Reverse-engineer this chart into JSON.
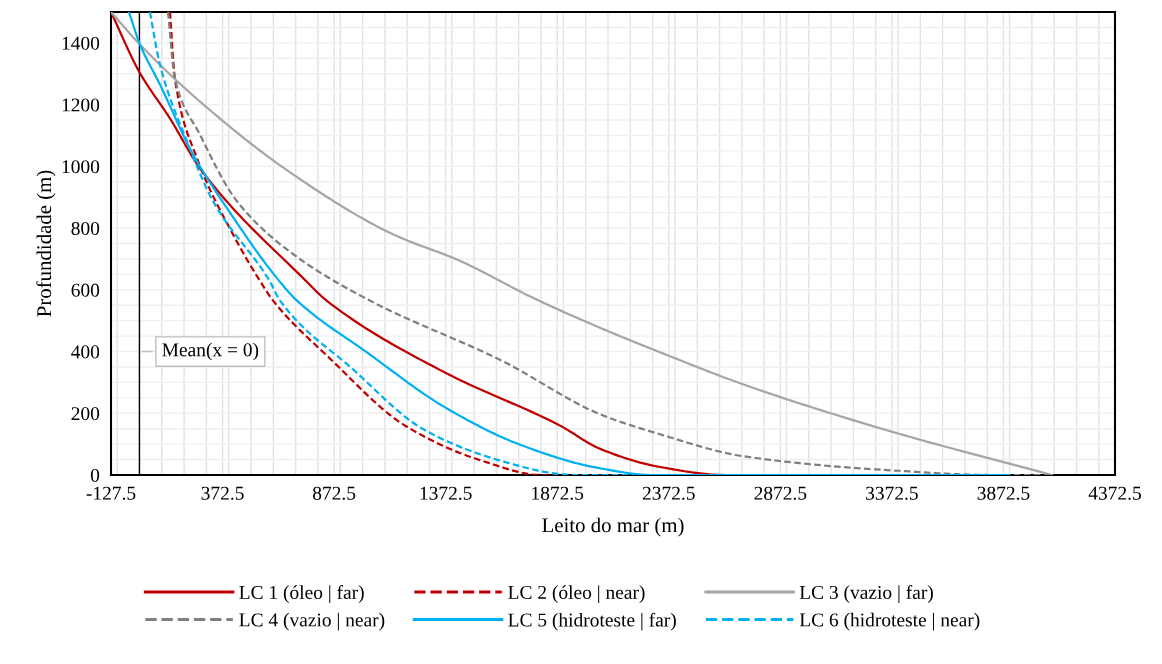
{
  "chart_data": {
    "type": "line",
    "xlabel": "Leito do mar (m)",
    "ylabel": "Profundidade (m)",
    "xlim": [
      -127.5,
      4372.5
    ],
    "xticks": [
      -127.5,
      372.5,
      872.5,
      1372.5,
      1872.5,
      2372.5,
      2872.5,
      3372.5,
      3872.5,
      4372.5
    ],
    "ylim": [
      0,
      1500
    ],
    "yticks": [
      0,
      200,
      400,
      600,
      800,
      1000,
      1200,
      1400
    ],
    "grid": true,
    "legend": "bottom",
    "marker": "none",
    "ref_lines": [
      {
        "axis": "x",
        "value": 0,
        "color": "#000000",
        "line_style": "solid"
      }
    ],
    "annotations": [
      {
        "text": "Mean(x = 0)",
        "x": 0,
        "y": 400
      }
    ],
    "series": [
      {
        "name": "LC 1 (óleo | far)",
        "color": "#c00000",
        "line_style": "solid",
        "x": [
          -127.5,
          0,
          137,
          271,
          746,
          839,
          1369,
          1885,
          2064,
          2333,
          2625,
          3900
        ],
        "values": [
          1500,
          1305,
          1155,
          994,
          629,
          565,
          332,
          160,
          85,
          26,
          0,
          0
        ]
      },
      {
        "name": "LC 2 (óleo | near)",
        "color": "#c00000",
        "line_style": "dashed",
        "x": [
          137,
          159,
          258,
          419,
          540,
          599,
          850,
          1195,
          1540,
          1800,
          3900
        ],
        "values": [
          1500,
          1284,
          1026,
          780,
          629,
          565,
          380,
          158,
          45,
          0,
          0
        ]
      },
      {
        "name": "LC 3 (vazio | far)",
        "color": "#a6a6a6",
        "line_style": "solid",
        "x": [
          -127.5,
          3,
          271,
          688,
          1136,
          1436,
          1764,
          2064,
          2346,
          2705,
          3350,
          4090
        ],
        "values": [
          1500,
          1394,
          1210,
          974,
          780,
          694,
          574,
          477,
          394,
          294,
          145,
          0
        ]
      },
      {
        "name": "LC 4 (vazio | near)",
        "color": "#7f7f7f",
        "line_style": "dashed",
        "x": [
          128,
          159,
          271,
          437,
          688,
          1033,
          1625,
          2064,
          2333,
          2705,
          3350,
          3830,
          4090
        ],
        "values": [
          1500,
          1284,
          1103,
          887,
          716,
          565,
          370,
          197,
          132,
          61,
          16,
          0,
          0
        ]
      },
      {
        "name": "LC 5 (hidroteste | far)",
        "color": "#00b0f0",
        "line_style": "solid",
        "x": [
          -47,
          3,
          92,
          240,
          392,
          626,
          706,
          1024,
          1370,
          1710,
          2055,
          2300,
          3900
        ],
        "values": [
          1500,
          1394,
          1265,
          1039,
          865,
          629,
          565,
          395,
          219,
          97,
          23,
          0,
          0
        ]
      },
      {
        "name": "LC 6 (hidroteste | near)",
        "color": "#00b0f0",
        "line_style": "dashed",
        "x": [
          47,
          92,
          213,
          330,
          583,
          630,
          953,
          1280,
          1625,
          1885,
          1950,
          3900
        ],
        "values": [
          1500,
          1329,
          1081,
          887,
          629,
          565,
          345,
          145,
          45,
          3,
          0,
          0
        ]
      }
    ]
  }
}
